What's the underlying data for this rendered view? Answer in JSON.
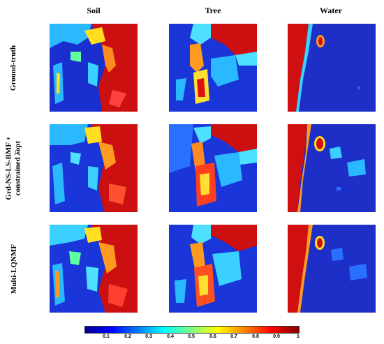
{
  "figure": {
    "columns": [
      "Soil",
      "Tree",
      "Water"
    ],
    "rows": [
      {
        "line1": "Ground-truth",
        "line2": ""
      },
      {
        "line1": "Grd-NS-LS-BMF +",
        "line2": "constrained λ̄opt"
      },
      {
        "line1": "Multi-LQNMF",
        "line2": ""
      }
    ],
    "colorbar": {
      "ticks": [
        "0.1",
        "0.2",
        "0.3",
        "0.4",
        "0.5",
        "0.6",
        "0.7",
        "0.8",
        "0.9",
        "1"
      ],
      "colormap": "jet"
    }
  }
}
